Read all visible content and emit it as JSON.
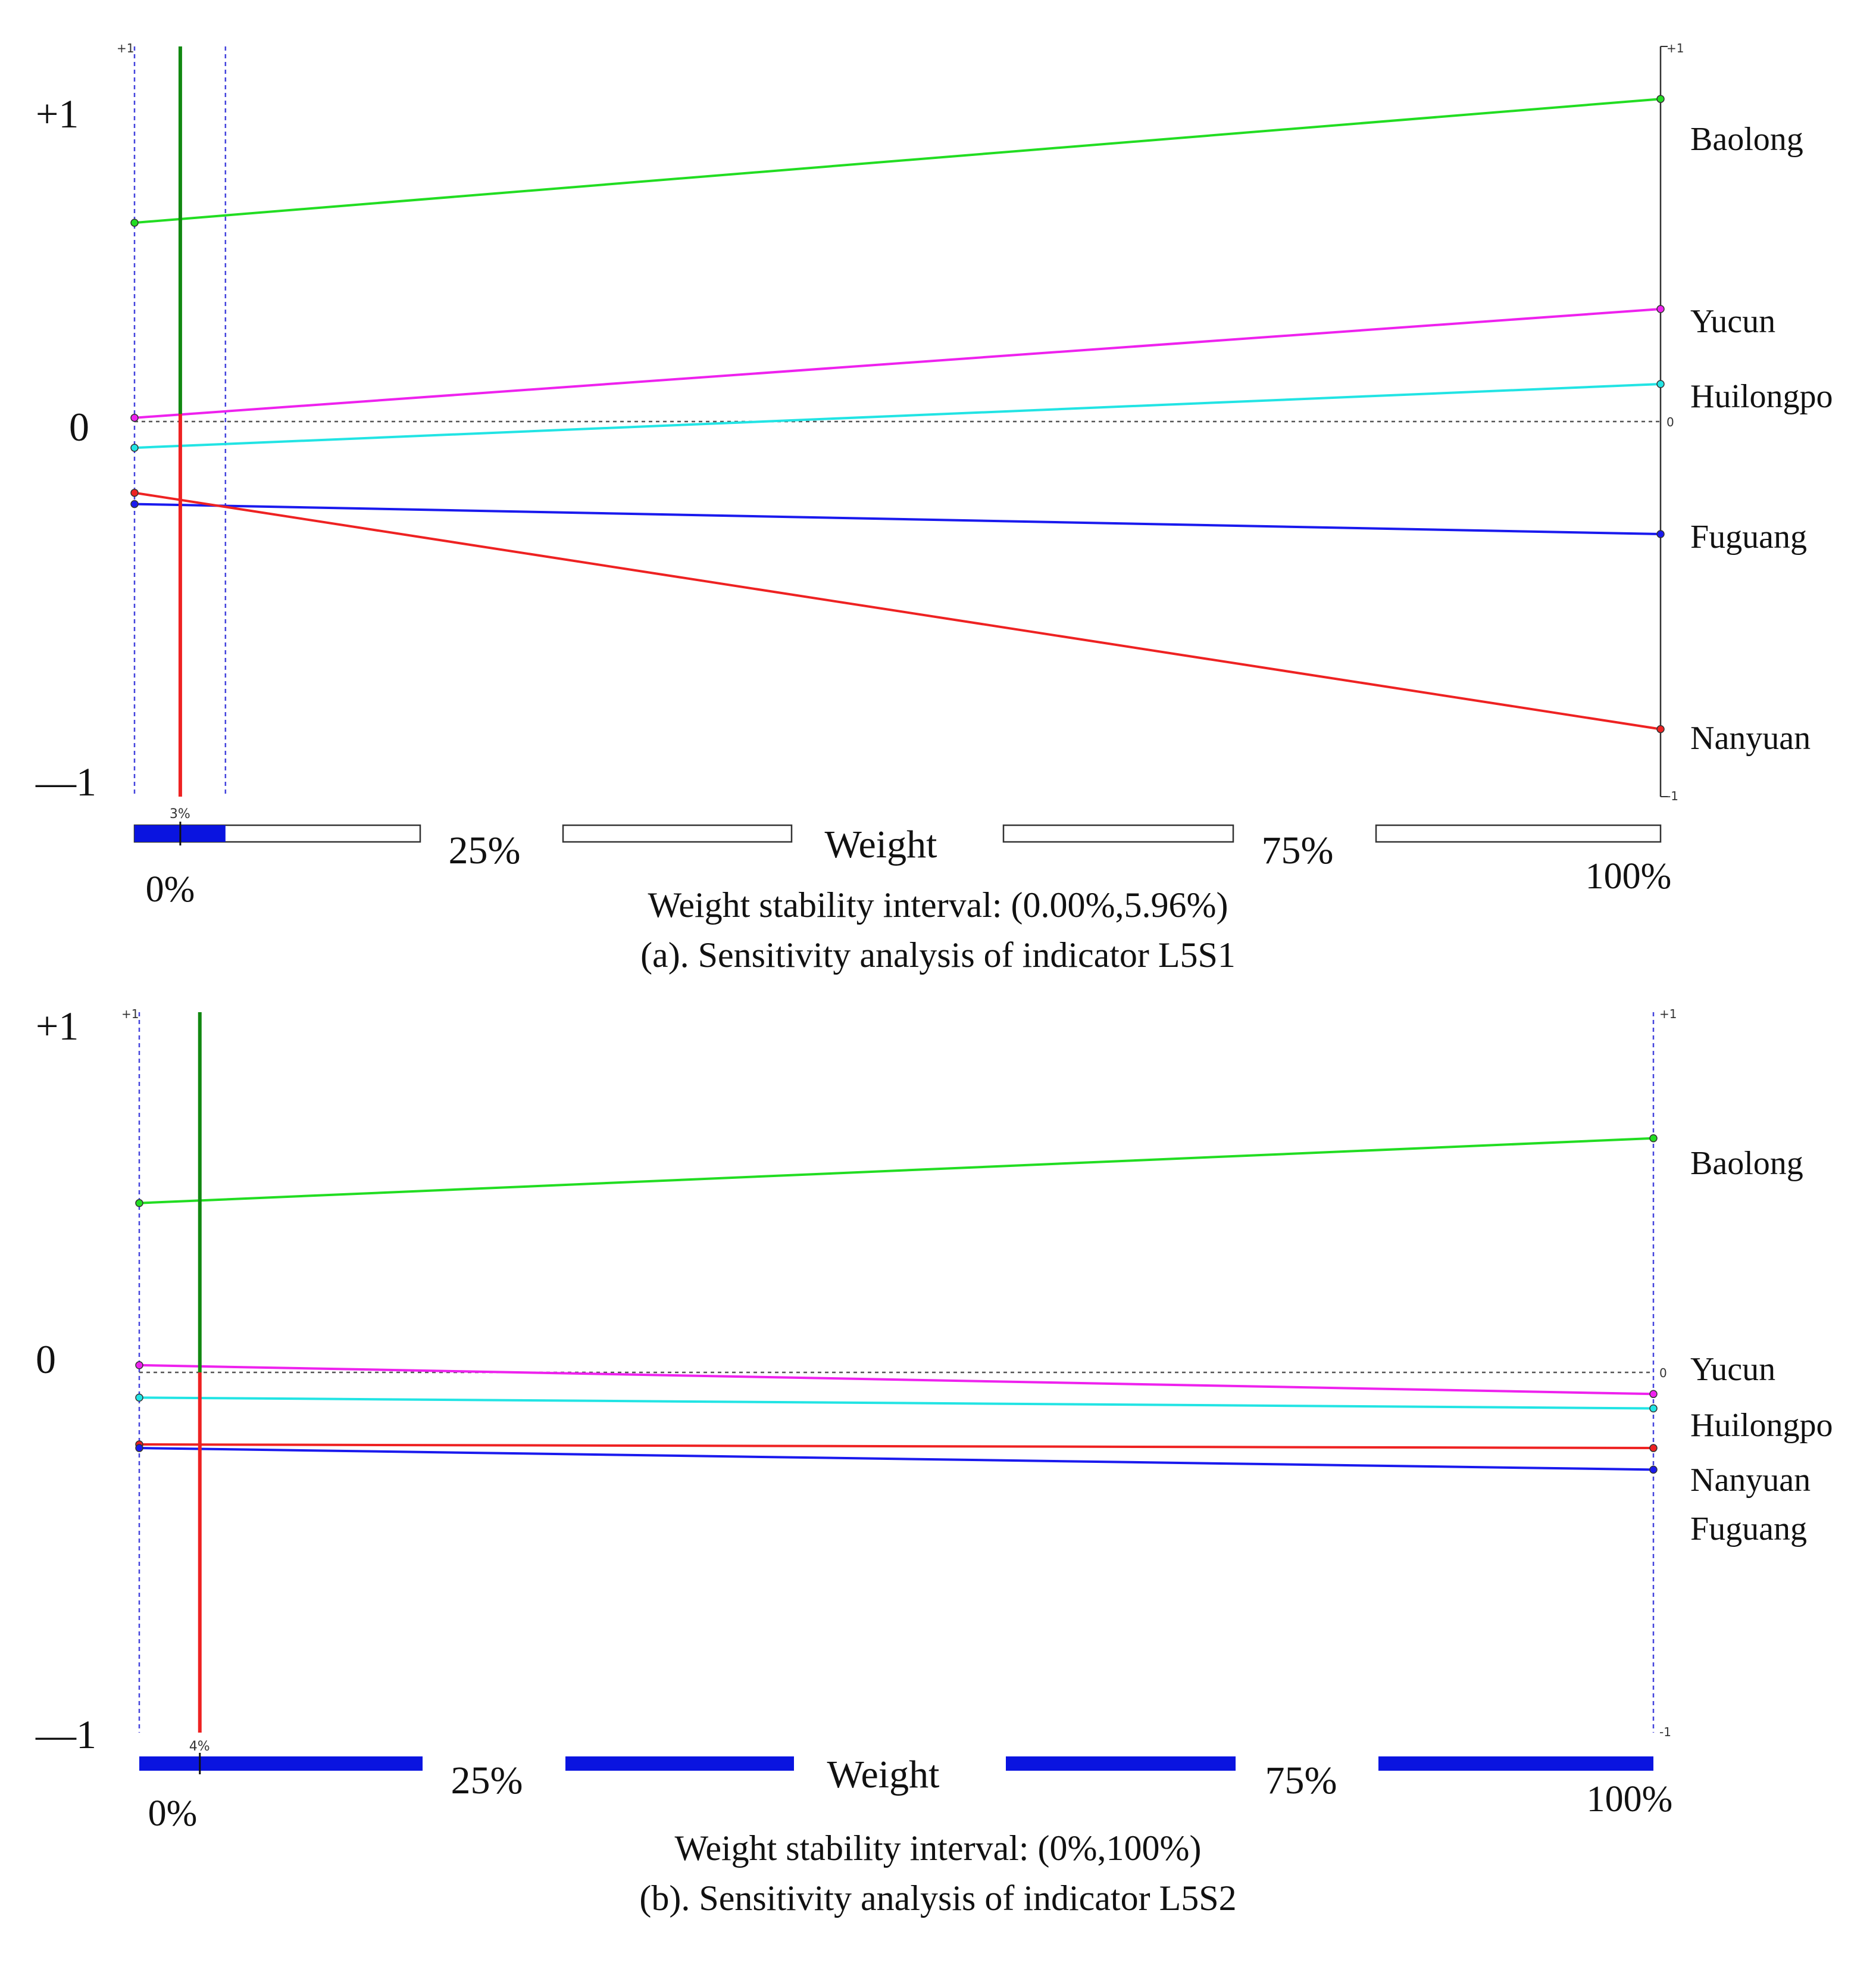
{
  "chart_data": [
    {
      "type": "line",
      "id": "a",
      "caption": "(a). Sensitivity analysis of indicator L5S1",
      "stability_text": "Weight stability interval: (0.00%,5.96%)",
      "xlabel": "Weight",
      "x_ticks": [
        "0%",
        "25%",
        "75%",
        "100%"
      ],
      "y_ticks": [
        "+1",
        "0",
        "—1"
      ],
      "mini_y_ticks": [
        "+1",
        "0",
        "-1"
      ],
      "ylim": [
        -1,
        1
      ],
      "xlim": [
        0,
        100
      ],
      "current_weight": 3,
      "current_weight_label": "3%",
      "stability_interval": [
        0,
        5.96
      ],
      "weight_bar_style": "partial",
      "series": [
        {
          "name": "Baolong",
          "color": "#22dd22",
          "values": [
            0.53,
            0.86
          ]
        },
        {
          "name": "Yucun",
          "color": "#ee22ee",
          "values": [
            0.01,
            0.3
          ]
        },
        {
          "name": "Huilongpo",
          "color": "#22e4e4",
          "values": [
            -0.07,
            0.1
          ]
        },
        {
          "name": "Fuguang",
          "color": "#1a1aee",
          "values": [
            -0.22,
            -0.3
          ]
        },
        {
          "name": "Nanyuan",
          "color": "#ee2222",
          "values": [
            -0.19,
            -0.82
          ]
        }
      ]
    },
    {
      "type": "line",
      "id": "b",
      "caption": "(b). Sensitivity analysis of indicator L5S2",
      "stability_text": "Weight stability interval: (0%,100%)",
      "xlabel": "Weight",
      "x_ticks": [
        "0%",
        "25%",
        "75%",
        "100%"
      ],
      "y_ticks": [
        "+1",
        "0",
        "—1"
      ],
      "mini_y_ticks": [
        "+1",
        "0",
        "-1"
      ],
      "ylim": [
        -1,
        1
      ],
      "xlim": [
        0,
        100
      ],
      "current_weight": 4,
      "current_weight_label": "4%",
      "stability_interval": [
        0,
        100
      ],
      "weight_bar_style": "full",
      "series": [
        {
          "name": "Baolong",
          "color": "#22dd22",
          "values": [
            0.47,
            0.65
          ]
        },
        {
          "name": "Yucun",
          "color": "#ee22ee",
          "values": [
            0.02,
            -0.06
          ]
        },
        {
          "name": "Huilongpo",
          "color": "#22e4e4",
          "values": [
            -0.07,
            -0.1
          ]
        },
        {
          "name": "Nanyuan",
          "color": "#ee2222",
          "values": [
            -0.2,
            -0.21
          ]
        },
        {
          "name": "Fuguang",
          "color": "#1a1aee",
          "values": [
            -0.21,
            -0.27
          ]
        }
      ]
    }
  ],
  "colors": {
    "stability_blue": "#0a14e0",
    "interval_guide": "#4444dd",
    "current_weight_top": "#118811",
    "current_weight_bottom": "#ee2222",
    "axis": "#333333"
  }
}
